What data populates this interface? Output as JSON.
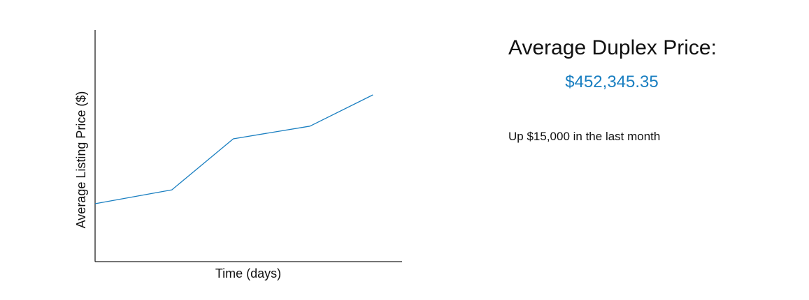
{
  "summary": {
    "title": "Average Duplex Price:",
    "value": "$452,345.35",
    "change_text": "Up $15,000 in the last month"
  },
  "colors": {
    "accent": "#1a7fc1",
    "axis": "#222222",
    "text": "#111111"
  },
  "chart_data": {
    "type": "line",
    "title": "",
    "xlabel": "Time (days)",
    "ylabel": "Average Listing Price ($)",
    "x_ticks_shown": false,
    "y_ticks_shown": false,
    "grid": false,
    "xlim": [
      0,
      1
    ],
    "ylim": [
      0,
      1
    ],
    "series": [
      {
        "name": "",
        "x": [
          0,
          0.25,
          0.45,
          0.7,
          0.905
        ],
        "y": [
          0.25,
          0.31,
          0.53,
          0.585,
          0.72
        ]
      }
    ]
  }
}
